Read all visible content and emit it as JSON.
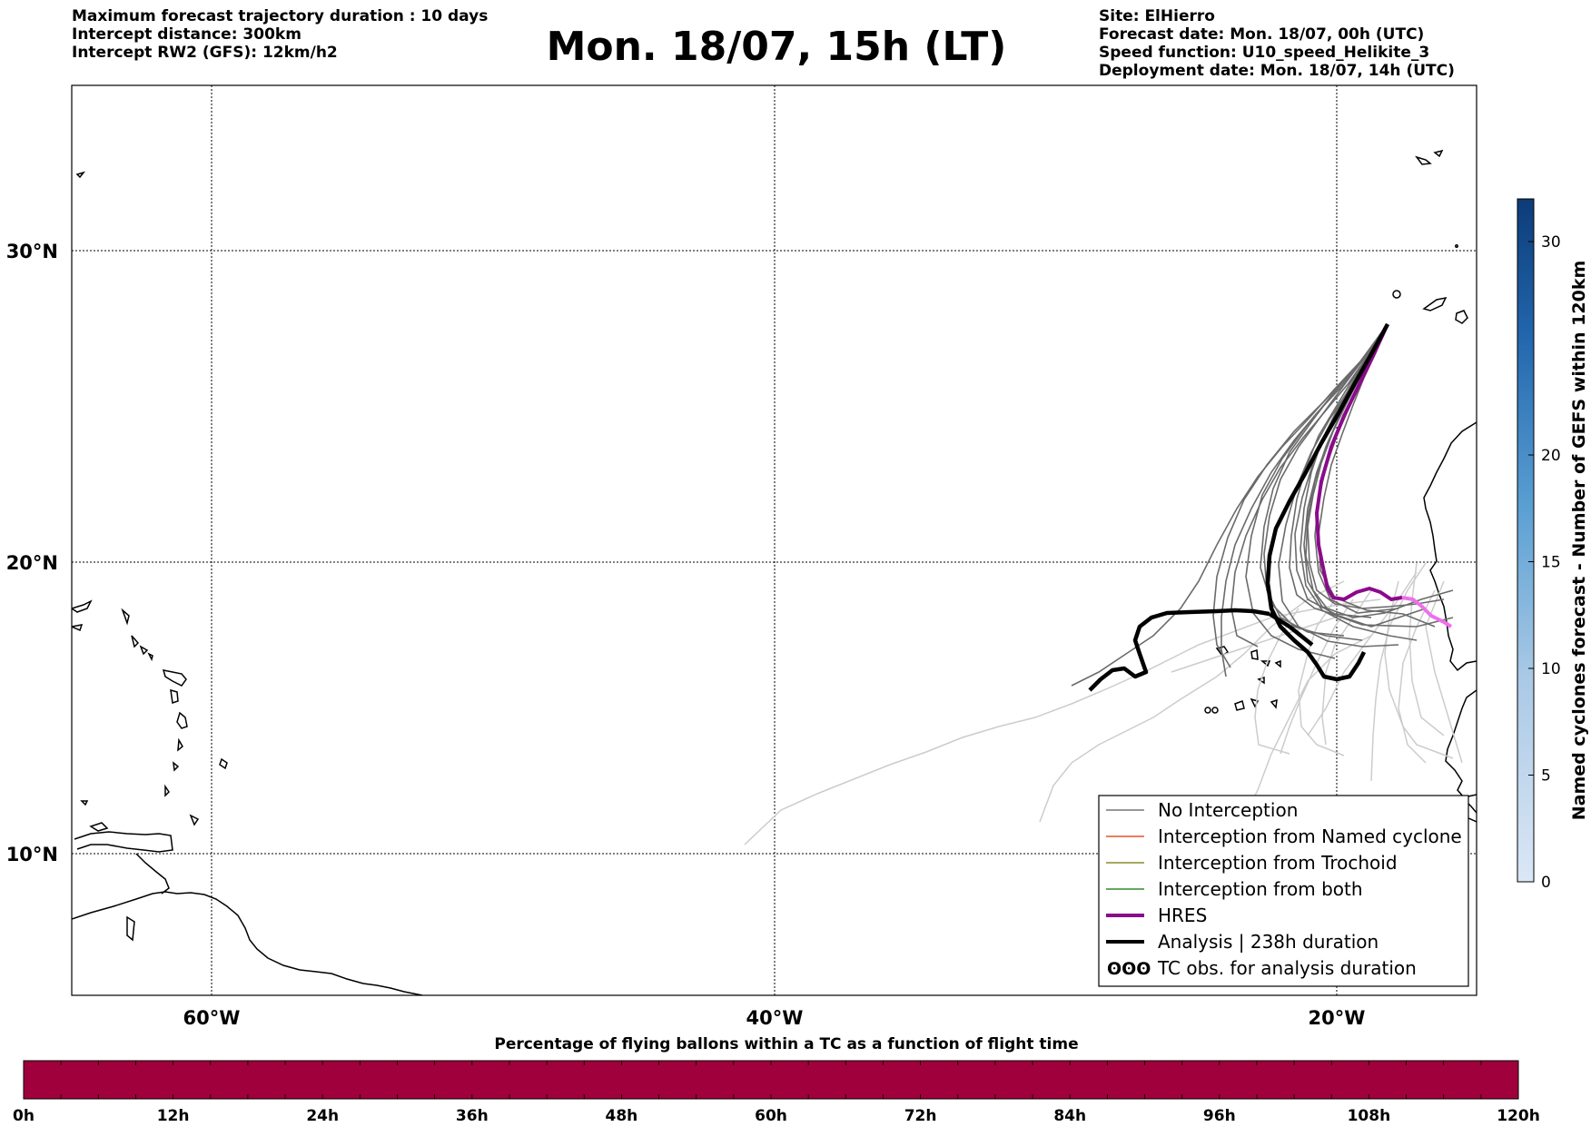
{
  "header": {
    "left": [
      "Maximum forecast trajectory duration : 10 days",
      "Intercept distance: 300km",
      "Intercept RW2 (GFS):  12km/h2"
    ],
    "title": "Mon. 18/07, 15h (LT)",
    "right": [
      "Site: ElHierro",
      "Forecast date: Mon. 18/07, 00h (UTC)",
      "Speed function: U10_speed_Helikite_3",
      "Deployment date: Mon. 18/07, 14h (UTC)"
    ]
  },
  "map": {
    "lat_labels": [
      "30°N",
      "20°N",
      "10°N"
    ],
    "lon_labels": [
      "60°W",
      "40°W",
      "20°W"
    ],
    "grid": "dotted",
    "legend": {
      "position": "bottom-right",
      "items": [
        {
          "label": "No Interception",
          "color": "#777777",
          "style": "thin"
        },
        {
          "label": "Interception from Named cyclone",
          "color": "#e8502a",
          "style": "thin"
        },
        {
          "label": "Interception from Trochoid",
          "color": "#8b8b2a",
          "style": "thin"
        },
        {
          "label": "Interception from both",
          "color": "#2e8b2e",
          "style": "thin"
        },
        {
          "label": "HRES",
          "color": "#8b0a8b",
          "style": "thick"
        },
        {
          "label": "Analysis | 238h duration",
          "color": "#000000",
          "style": "thick"
        },
        {
          "label": "TC obs. for analysis duration",
          "color": "#000000",
          "style": "symbol"
        }
      ]
    },
    "colors": {
      "no_interception": "#777777",
      "light_traj": "#cccccc",
      "hres": "#8b0a8b",
      "hres_tail": "#ee6fee",
      "analysis": "#000000"
    }
  },
  "colorbar_right": {
    "label": "Named cyclones forecast - Number of GEFS within 120km",
    "ticks": [
      "30",
      "20",
      "15",
      "10",
      "5",
      "0"
    ],
    "tick_values": [
      30,
      20,
      15,
      10,
      5,
      0
    ],
    "max": 32
  },
  "colorbar_bottom": {
    "title": "Percentage of flying ballons within a TC as a function of flight time",
    "ticks": [
      "0h",
      "12h",
      "24h",
      "36h",
      "48h",
      "60h",
      "72h",
      "84h",
      "96h",
      "108h",
      "120h"
    ],
    "color": "#a0003c"
  }
}
